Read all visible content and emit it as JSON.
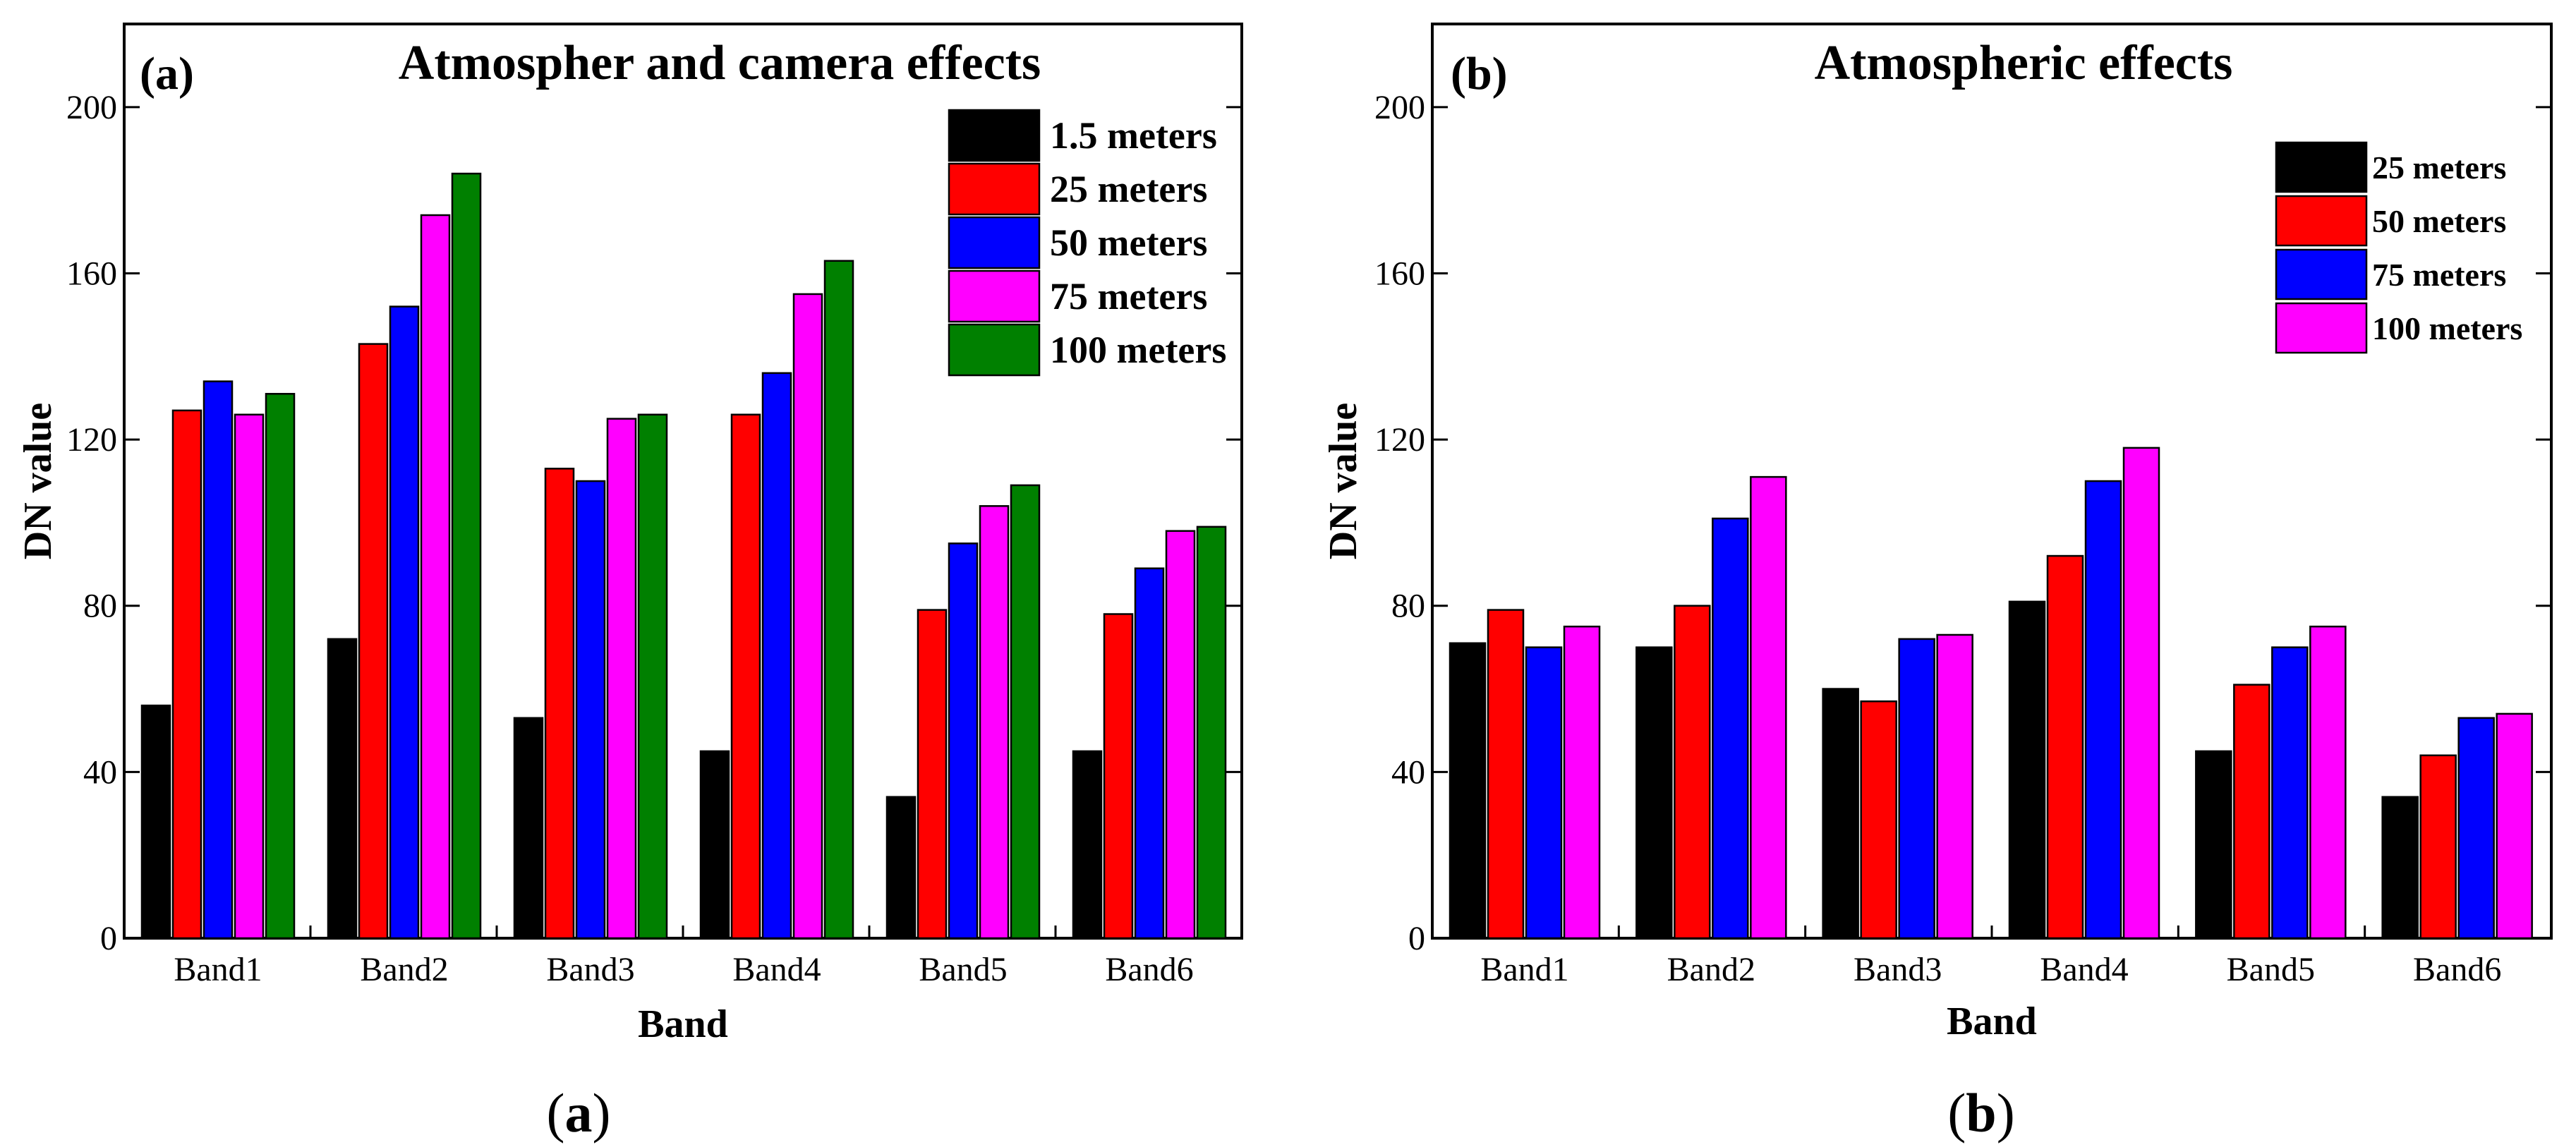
{
  "chart_data": [
    {
      "type": "bar",
      "panel_tag": "(a)",
      "title": "Atmospher and camera effects",
      "xlabel": "Band",
      "ylabel": "DN value",
      "ylim": [
        0,
        220
      ],
      "yticks": [
        "0",
        "40",
        "80",
        "120",
        "160",
        "200"
      ],
      "categories": [
        "Band1",
        "Band2",
        "Band3",
        "Band4",
        "Band5",
        "Band6"
      ],
      "legend_position": "top-right",
      "series": [
        {
          "name": "1.5 meters",
          "color": "#000000",
          "values": [
            56,
            72,
            53,
            45,
            34,
            45
          ]
        },
        {
          "name": "25 meters",
          "color": "#ff0000",
          "values": [
            127,
            143,
            113,
            126,
            79,
            78
          ]
        },
        {
          "name": "50 meters",
          "color": "#0000ff",
          "values": [
            134,
            152,
            110,
            136,
            95,
            89
          ]
        },
        {
          "name": "75 meters",
          "color": "#ff00ff",
          "values": [
            126,
            174,
            125,
            155,
            104,
            98
          ]
        },
        {
          "name": "100 meters",
          "color": "#008000",
          "values": [
            131,
            184,
            126,
            163,
            109,
            99
          ]
        }
      ],
      "caption": "a"
    },
    {
      "type": "bar",
      "panel_tag": "(b)",
      "title": "Atmospheric effects",
      "xlabel": "Band",
      "ylabel": "DN value",
      "ylim": [
        0,
        220
      ],
      "yticks": [
        "0",
        "40",
        "80",
        "120",
        "160",
        "200"
      ],
      "categories": [
        "Band1",
        "Band2",
        "Band3",
        "Band4",
        "Band5",
        "Band6"
      ],
      "legend_position": "top-right",
      "series": [
        {
          "name": "25 meters",
          "color": "#000000",
          "values": [
            71,
            70,
            60,
            81,
            45,
            34
          ]
        },
        {
          "name": "50 meters",
          "color": "#ff0000",
          "values": [
            79,
            80,
            57,
            92,
            61,
            44
          ]
        },
        {
          "name": "75 meters",
          "color": "#0000ff",
          "values": [
            70,
            101,
            72,
            110,
            70,
            53
          ]
        },
        {
          "name": "100 meters",
          "color": "#ff00ff",
          "values": [
            75,
            111,
            73,
            118,
            75,
            54
          ]
        }
      ],
      "caption": "b"
    }
  ]
}
